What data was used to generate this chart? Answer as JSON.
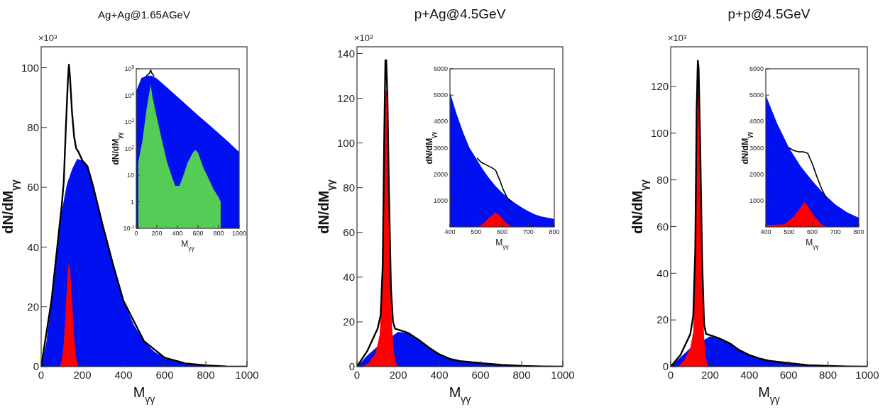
{
  "chart_data": [
    {
      "type": "area",
      "title": "Ag+Ag@1.65AGeV",
      "xlabel": "M$_{γγ}$",
      "ylabel": "dN/dM$_{γγ}$",
      "annotations": [
        "×10³"
      ],
      "xlim": [
        0,
        1000
      ],
      "xticks": [
        0,
        200,
        400,
        600,
        800,
        1000
      ],
      "ylim": [
        0,
        107
      ],
      "yticks": [
        0,
        20,
        40,
        60,
        80,
        100
      ],
      "series": [
        {
          "color": "#0010f0",
          "x": [
            0,
            25,
            50,
            75,
            100,
            125,
            150,
            175,
            200,
            225,
            250,
            275,
            300,
            325,
            350,
            375,
            400,
            450,
            500,
            550,
            600,
            650,
            700,
            750,
            800,
            850,
            900,
            1000
          ],
          "values": [
            0,
            8,
            22,
            38,
            52,
            61,
            66,
            69.5,
            69,
            67,
            61,
            54,
            47,
            40,
            34,
            28,
            22,
            14,
            8.5,
            5,
            3,
            1.8,
            1.1,
            0.7,
            0.4,
            0.2,
            0.1,
            0
          ]
        },
        {
          "color": "#ff0000",
          "x": [
            90,
            100,
            110,
            120,
            130,
            135,
            140,
            150,
            160,
            170,
            180
          ],
          "values": [
            0,
            2,
            8,
            20,
            32,
            35,
            33,
            22,
            10,
            3,
            0
          ]
        },
        {
          "type": "line",
          "color": "#000000",
          "x": [
            0,
            50,
            75,
            100,
            110,
            120,
            130,
            135,
            140,
            150,
            160,
            170,
            180,
            200,
            225,
            250,
            275,
            300,
            350,
            400,
            500,
            600,
            700,
            800,
            900,
            1000
          ],
          "values": [
            0,
            22,
            38,
            54,
            62,
            80,
            96,
            101,
            97,
            85,
            77,
            73,
            72,
            69,
            67,
            61,
            54,
            47,
            34,
            22,
            8.5,
            3,
            1.1,
            0.4,
            0.1,
            0
          ]
        }
      ]
    },
    {
      "type": "area",
      "xlabel": "M$_{γγ}$",
      "ylabel": "dN/dM$_{γγ}$",
      "xlim": [
        0,
        1000
      ],
      "xticks": [
        0,
        200,
        400,
        600,
        800,
        1000
      ],
      "log": "y",
      "ylim": [
        0.1,
        100000
      ],
      "yticks": [
        {
          "value": 0.1,
          "label": "10$^{-1}$"
        },
        1,
        10,
        {
          "value": 100,
          "label": "10$^{2}$"
        },
        {
          "value": 1000,
          "label": "10$^{3}$"
        },
        {
          "value": 10000,
          "label": "10$^{4}$"
        },
        {
          "value": 100000,
          "label": "10$^{5}$"
        }
      ],
      "series": [
        {
          "color": "#0010f0",
          "x": [
            0,
            50,
            100,
            150,
            200,
            300,
            400,
            500,
            600,
            700,
            800,
            900,
            1000
          ],
          "values": [
            15000,
            45000,
            55000,
            55000,
            43000,
            19500,
            8900,
            4000,
            1800,
            830,
            380,
            170,
            74
          ]
        },
        {
          "color": "#55cc55",
          "x": [
            20,
            60,
            100,
            130,
            140,
            160,
            200,
            250,
            300,
            350,
            380,
            420,
            450,
            500,
            550,
            575,
            600,
            650,
            700,
            750,
            800,
            820
          ],
          "values": [
            30,
            200,
            3000,
            15000,
            25000,
            8000,
            1500,
            200,
            30,
            8,
            4,
            4,
            8,
            30,
            70,
            90,
            70,
            20,
            8,
            3,
            1.5,
            1
          ]
        },
        {
          "type": "line",
          "color": "#000000",
          "x": [
            100,
            130,
            140,
            150,
            170
          ],
          "values": [
            55000,
            70000,
            90000,
            70000,
            55000
          ]
        }
      ]
    },
    {
      "type": "area",
      "title": "p+Ag@4.5GeV",
      "xlabel": "M$_{γγ}$",
      "ylabel": "dN/dM$_{γγ}$",
      "annotations": [
        "×10³"
      ],
      "xlim": [
        0,
        1000
      ],
      "xticks": [
        0,
        200,
        400,
        600,
        800,
        1000
      ],
      "ylim": [
        0,
        143
      ],
      "yticks": [
        0,
        20,
        40,
        60,
        80,
        100,
        120,
        140
      ],
      "series": [
        {
          "color": "#0010f0",
          "x": [
            0,
            50,
            100,
            150,
            200,
            250,
            300,
            350,
            400,
            450,
            500,
            550,
            600,
            650,
            700,
            750,
            800,
            900,
            1000
          ],
          "values": [
            0,
            5,
            9,
            null,
            15.5,
            15,
            12,
            8.5,
            5.5,
            3.5,
            2.5,
            2,
            1.6,
            1.2,
            0.8,
            0.5,
            0.3,
            0.1,
            0
          ]
        },
        {
          "color": "#ff0000",
          "x": [
            30,
            60,
            90,
            110,
            120,
            130,
            135,
            140,
            145,
            150,
            160,
            170,
            180,
            190,
            200
          ],
          "values": [
            0,
            2,
            6,
            14,
            30,
            80,
            110,
            124,
            123,
            100,
            50,
            18,
            6,
            1,
            0
          ]
        },
        {
          "type": "line",
          "color": "#000000",
          "x": [
            0,
            50,
            100,
            115,
            125,
            132,
            138,
            142,
            148,
            155,
            165,
            175,
            185,
            200,
            250,
            300,
            350,
            400,
            450,
            500,
            600,
            700,
            800,
            900,
            1000
          ],
          "values": [
            0,
            7,
            17,
            23,
            45,
            100,
            137,
            137,
            120,
            80,
            35,
            20,
            17,
            16.5,
            15,
            12,
            8.5,
            5.5,
            3.5,
            2.5,
            1.6,
            0.8,
            0.3,
            0.1,
            0
          ]
        }
      ]
    },
    {
      "type": "area",
      "xlabel": "M$_{γγ}$",
      "ylabel": "dN/dM$_{γγ}$",
      "xlim": [
        400,
        800
      ],
      "xticks": [
        400,
        500,
        600,
        700,
        800
      ],
      "ylim": [
        0,
        6000
      ],
      "yticks": [
        1000,
        2000,
        3000,
        4000,
        5000,
        6000
      ],
      "series": [
        {
          "color": "#0010f0",
          "x": [
            400,
            425,
            450,
            475,
            500,
            525,
            550,
            575,
            600,
            625,
            650,
            675,
            700,
            725,
            750,
            775,
            800
          ],
          "values": [
            5100,
            4300,
            3600,
            3000,
            2600,
            2200,
            1850,
            1550,
            1300,
            1080,
            900,
            740,
            600,
            480,
            400,
            350,
            300
          ]
        },
        {
          "color": "#ff0000",
          "x": [
            510,
            530,
            550,
            575,
            590,
            610,
            630,
            640
          ],
          "values": [
            0,
            150,
            350,
            550,
            450,
            200,
            50,
            0
          ]
        },
        {
          "type": "line",
          "color": "#000000",
          "x": [
            505,
            520,
            540,
            560,
            575,
            590,
            605,
            620,
            635
          ],
          "values": [
            2600,
            2450,
            2350,
            2250,
            2150,
            1800,
            1400,
            1100,
            950
          ]
        }
      ]
    },
    {
      "type": "area",
      "title": "p+p@4.5GeV",
      "xlabel": "M$_{γγ}$",
      "ylabel": "dN/dM$_{γγ}$",
      "annotations": [
        "×10³"
      ],
      "xlim": [
        0,
        1000
      ],
      "xticks": [
        0,
        200,
        400,
        600,
        800,
        1000
      ],
      "ylim": [
        0,
        137
      ],
      "yticks": [
        0,
        20,
        40,
        60,
        80,
        100,
        120
      ],
      "series": [
        {
          "color": "#0010f0",
          "x": [
            0,
            50,
            100,
            150,
            200,
            250,
            300,
            350,
            400,
            450,
            500,
            550,
            600,
            650,
            700,
            800,
            900,
            1000
          ],
          "values": [
            0,
            4,
            8,
            null,
            13,
            12,
            10,
            7,
            5,
            3.5,
            2.5,
            2,
            1.5,
            1,
            0.6,
            0.3,
            0.1,
            0
          ]
        },
        {
          "color": "#ff0000",
          "x": [
            40,
            70,
            100,
            115,
            125,
            132,
            138,
            142,
            150,
            160,
            170,
            180,
            190
          ],
          "values": [
            0,
            3,
            8,
            15,
            50,
            100,
            119,
            118,
            85,
            40,
            12,
            3,
            0
          ]
        },
        {
          "type": "line",
          "color": "#000000",
          "x": [
            0,
            50,
            100,
            115,
            125,
            132,
            138,
            142,
            150,
            160,
            170,
            180,
            200,
            250,
            300,
            350,
            400,
            450,
            500,
            600,
            700,
            800,
            900,
            1000
          ],
          "values": [
            0,
            5,
            14,
            22,
            50,
            110,
            131,
            128,
            95,
            45,
            18,
            14,
            13.5,
            12,
            10,
            7,
            5,
            3.5,
            2.5,
            1.5,
            0.6,
            0.3,
            0.1,
            0
          ]
        }
      ]
    },
    {
      "type": "area",
      "xlabel": "M$_{γγ}$",
      "ylabel": "dN/dM$_{γγ}$",
      "xlim": [
        400,
        800
      ],
      "xticks": [
        400,
        500,
        600,
        700,
        800
      ],
      "ylim": [
        0,
        6000
      ],
      "yticks": [
        1000,
        2000,
        3000,
        4000,
        5000,
        6000
      ],
      "series": [
        {
          "color": "#0010f0",
          "x": [
            400,
            450,
            500,
            550,
            600,
            650,
            700,
            750,
            800
          ],
          "values": [
            5000,
            3900,
            3000,
            2300,
            1750,
            1250,
            850,
            550,
            350
          ]
        },
        {
          "color": "#ff0000",
          "x": [
            400,
            430,
            480,
            520,
            550,
            565,
            580,
            610,
            640,
            660
          ],
          "values": [
            80,
            80,
            100,
            400,
            750,
            950,
            800,
            400,
            100,
            0
          ]
        },
        {
          "type": "line",
          "color": "#000000",
          "x": [
            500,
            520,
            540,
            560,
            580,
            600,
            620,
            640,
            660
          ],
          "values": [
            3000,
            2900,
            2850,
            2850,
            2800,
            2400,
            1900,
            1450,
            1100
          ]
        }
      ]
    }
  ]
}
